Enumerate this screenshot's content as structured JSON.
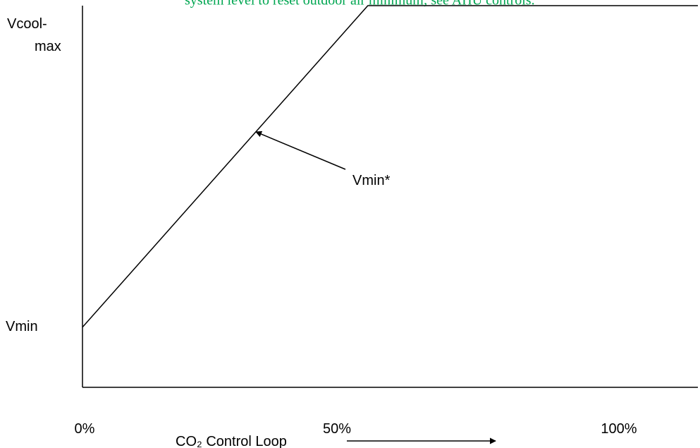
{
  "top_note": {
    "text": "system level to reset outdoor air minimum; see AHU controls.",
    "color": "#00a651"
  },
  "chart_data": {
    "type": "line",
    "title": "",
    "xlabel": "CO₂ Control Loop",
    "ylabel": "",
    "x_ticks": [
      {
        "label": "0%",
        "value": 0
      },
      {
        "label": "50%",
        "value": 50
      },
      {
        "label": "100%",
        "value": 100
      }
    ],
    "y_ticks": [
      {
        "label": "Vmin",
        "value": 0
      },
      {
        "label": "Vcool-max",
        "value": 1
      }
    ],
    "xlim": [
      0,
      110
    ],
    "ylim": [
      -0.2,
      1.07
    ],
    "series": [
      {
        "points": [
          {
            "x": 0,
            "y": 0
          },
          {
            "x": 51,
            "y": 1.07
          },
          {
            "x": 110,
            "y": 1.07
          }
        ]
      }
    ],
    "annotations": [
      {
        "text": "Vmin*",
        "points_to": {
          "x": 31,
          "y": 0.65
        }
      }
    ],
    "grid": false,
    "legend": "none"
  }
}
